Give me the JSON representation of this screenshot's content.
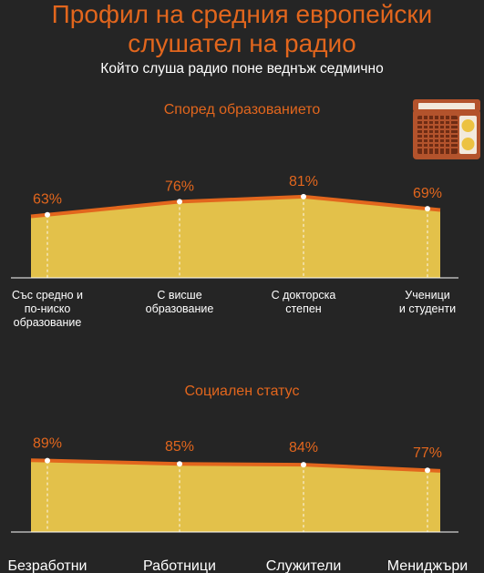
{
  "header": {
    "title_line1": "Профил на средния европейски",
    "title_line2": "слушател на радио",
    "subtitle": "Който слуша радио поне веднъж седмично"
  },
  "colors": {
    "background": "#252525",
    "accent": "#e2661d",
    "area_fill": "#e3c14a",
    "radio_body": "#b3532c",
    "radio_knob": "#ecc241"
  },
  "icons": [
    "radio-icon"
  ],
  "chart_data": [
    {
      "type": "area",
      "title": "Според образованието",
      "categories": [
        [
          "Със средно и",
          "по-ниско",
          "образование"
        ],
        [
          "С висше",
          "образование"
        ],
        [
          "С докторска",
          "степен"
        ],
        [
          "Ученици",
          "и студенти"
        ]
      ],
      "values": [
        63,
        76,
        81,
        69
      ],
      "value_labels": [
        "63%",
        "76%",
        "81%",
        "69%"
      ],
      "unit": "%",
      "ylim": [
        0,
        100
      ],
      "grid": false
    },
    {
      "type": "area",
      "title": "Социален статус",
      "categories": [
        [
          "Безработни"
        ],
        [
          "Работници"
        ],
        [
          "Служители"
        ],
        [
          "Мениджъри"
        ]
      ],
      "values": [
        89,
        85,
        84,
        77
      ],
      "value_labels": [
        "89%",
        "85%",
        "84%",
        "77%"
      ],
      "unit": "%",
      "ylim": [
        0,
        100
      ],
      "grid": false
    }
  ]
}
